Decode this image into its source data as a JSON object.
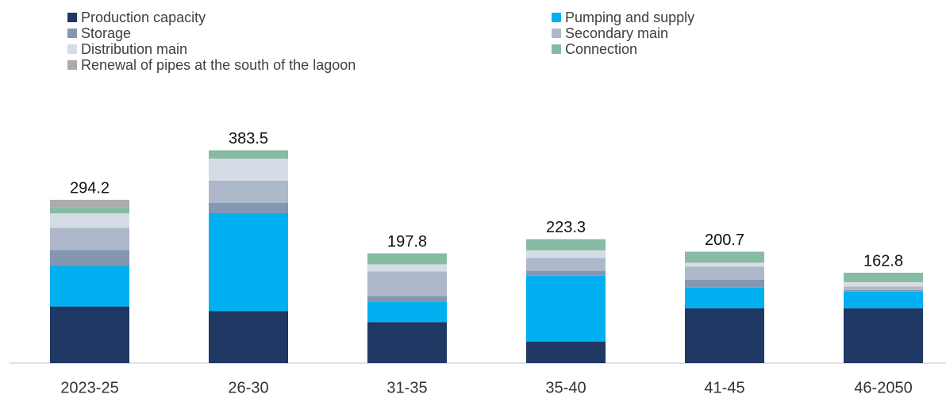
{
  "chart_data": {
    "type": "stacked_bar",
    "categories": [
      "2023-25",
      "26-30",
      "31-35",
      "35-40",
      "41-45",
      "46-2050"
    ],
    "series": [
      {
        "name": "Production capacity",
        "color": "#1f3864",
        "values": [
          102,
          94,
          74,
          39,
          99,
          98.8
        ]
      },
      {
        "name": "Pumping and supply",
        "color": "#00b0f0",
        "values": [
          73,
          176,
          37,
          118.3,
          37,
          30
        ]
      },
      {
        "name": "Storage",
        "color": "#8497b0",
        "values": [
          29,
          19,
          10,
          9,
          14,
          3
        ]
      },
      {
        "name": "Secondary main",
        "color": "#adb9ca",
        "values": [
          40,
          40,
          44,
          23,
          24,
          6
        ]
      },
      {
        "name": "Distribution main",
        "color": "#d6dce5",
        "values": [
          26,
          39.5,
          13,
          14,
          7,
          8
        ]
      },
      {
        "name": "Connection",
        "color": "#87bba3",
        "values": [
          11,
          15,
          19.8,
          20,
          19.7,
          17
        ]
      },
      {
        "name": "Renewal of pipes at the south of the lagoon",
        "color": "#aeaaaa",
        "values": [
          13.2,
          0,
          0,
          0,
          0,
          0
        ]
      }
    ],
    "totals": [
      294.2,
      383.5,
      197.8,
      223.3,
      200.7,
      162.8
    ],
    "ylim": [
      0,
      420
    ]
  }
}
